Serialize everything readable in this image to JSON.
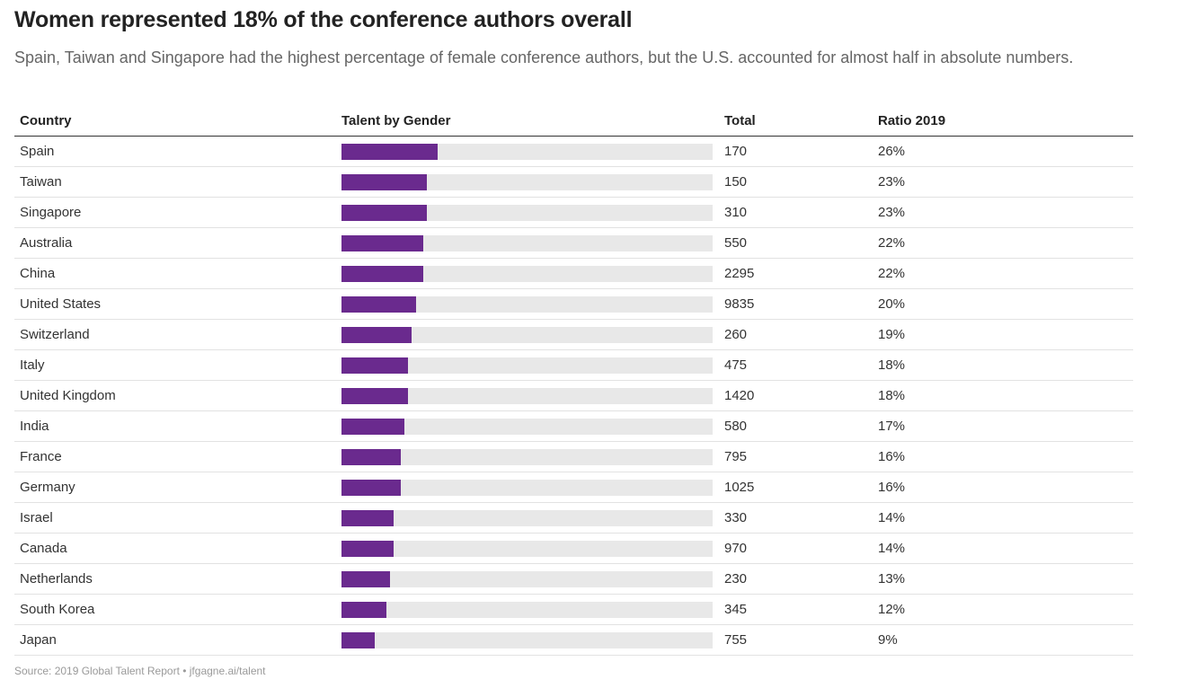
{
  "title": "Women represented 18% of the conference authors overall",
  "subtitle": "Spain, Taiwan and Singapore had the highest percentage of female conference authors, but the U.S. accounted for almost half in absolute numbers.",
  "source": "Source: 2019 Global Talent Report • jfgagne.ai/talent",
  "colors": {
    "bar": "#6a2a8e",
    "track": "#e8e8e8"
  },
  "chart_data": {
    "type": "table",
    "headers": [
      "Country",
      "Talent by Gender",
      "Total",
      "Ratio 2019"
    ],
    "xlim": [
      0,
      100
    ],
    "rows": [
      {
        "country": "Spain",
        "total": "170",
        "ratio_label": "26%",
        "ratio": 26
      },
      {
        "country": "Taiwan",
        "total": "150",
        "ratio_label": "23%",
        "ratio": 23
      },
      {
        "country": "Singapore",
        "total": "310",
        "ratio_label": "23%",
        "ratio": 23
      },
      {
        "country": "Australia",
        "total": "550",
        "ratio_label": "22%",
        "ratio": 22
      },
      {
        "country": "China",
        "total": "2295",
        "ratio_label": "22%",
        "ratio": 22
      },
      {
        "country": "United States",
        "total": "9835",
        "ratio_label": "20%",
        "ratio": 20
      },
      {
        "country": "Switzerland",
        "total": "260",
        "ratio_label": "19%",
        "ratio": 19
      },
      {
        "country": "Italy",
        "total": "475",
        "ratio_label": "18%",
        "ratio": 18
      },
      {
        "country": "United Kingdom",
        "total": "1420",
        "ratio_label": "18%",
        "ratio": 18
      },
      {
        "country": "India",
        "total": "580",
        "ratio_label": "17%",
        "ratio": 17
      },
      {
        "country": "France",
        "total": "795",
        "ratio_label": "16%",
        "ratio": 16
      },
      {
        "country": "Germany",
        "total": "1025",
        "ratio_label": "16%",
        "ratio": 16
      },
      {
        "country": "Israel",
        "total": "330",
        "ratio_label": "14%",
        "ratio": 14
      },
      {
        "country": "Canada",
        "total": "970",
        "ratio_label": "14%",
        "ratio": 14
      },
      {
        "country": "Netherlands",
        "total": "230",
        "ratio_label": "13%",
        "ratio": 13
      },
      {
        "country": "South Korea",
        "total": "345",
        "ratio_label": "12%",
        "ratio": 12
      },
      {
        "country": "Japan",
        "total": "755",
        "ratio_label": "9%",
        "ratio": 9
      }
    ]
  }
}
